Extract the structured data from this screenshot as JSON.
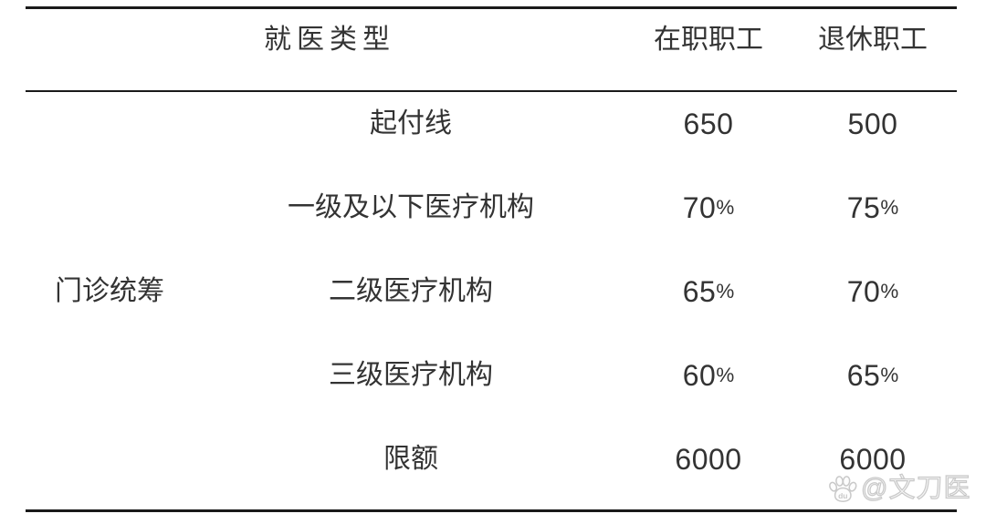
{
  "chart_data": {
    "type": "table",
    "header": {
      "visit_type": "就医类型",
      "active": "在职职工",
      "retired": "退休职工"
    },
    "group_label": "门诊统筹",
    "rows": [
      {
        "label": "起付线",
        "active": "650",
        "retired": "500"
      },
      {
        "label": "一级及以下医疗机构",
        "active": "70%",
        "retired": "75%"
      },
      {
        "label": "二级医疗机构",
        "active": "65%",
        "retired": "70%"
      },
      {
        "label": "三级医疗机构",
        "active": "60%",
        "retired": "65%"
      },
      {
        "label": "限额",
        "active": "6000",
        "retired": "6000"
      }
    ],
    "layout_hints": {
      "style": "three-line-booktabs",
      "grid": "off",
      "group_cell_spans_all_rows": true,
      "header_visit_type_spans_first_two_columns": true
    }
  },
  "colors": {
    "text": "#333333",
    "rule": "#1a1a1a",
    "watermark": "#c9c9c9"
  },
  "watermark": {
    "icon": "baidu-paw-icon",
    "icon_text": "du",
    "text": "@文刀医"
  }
}
